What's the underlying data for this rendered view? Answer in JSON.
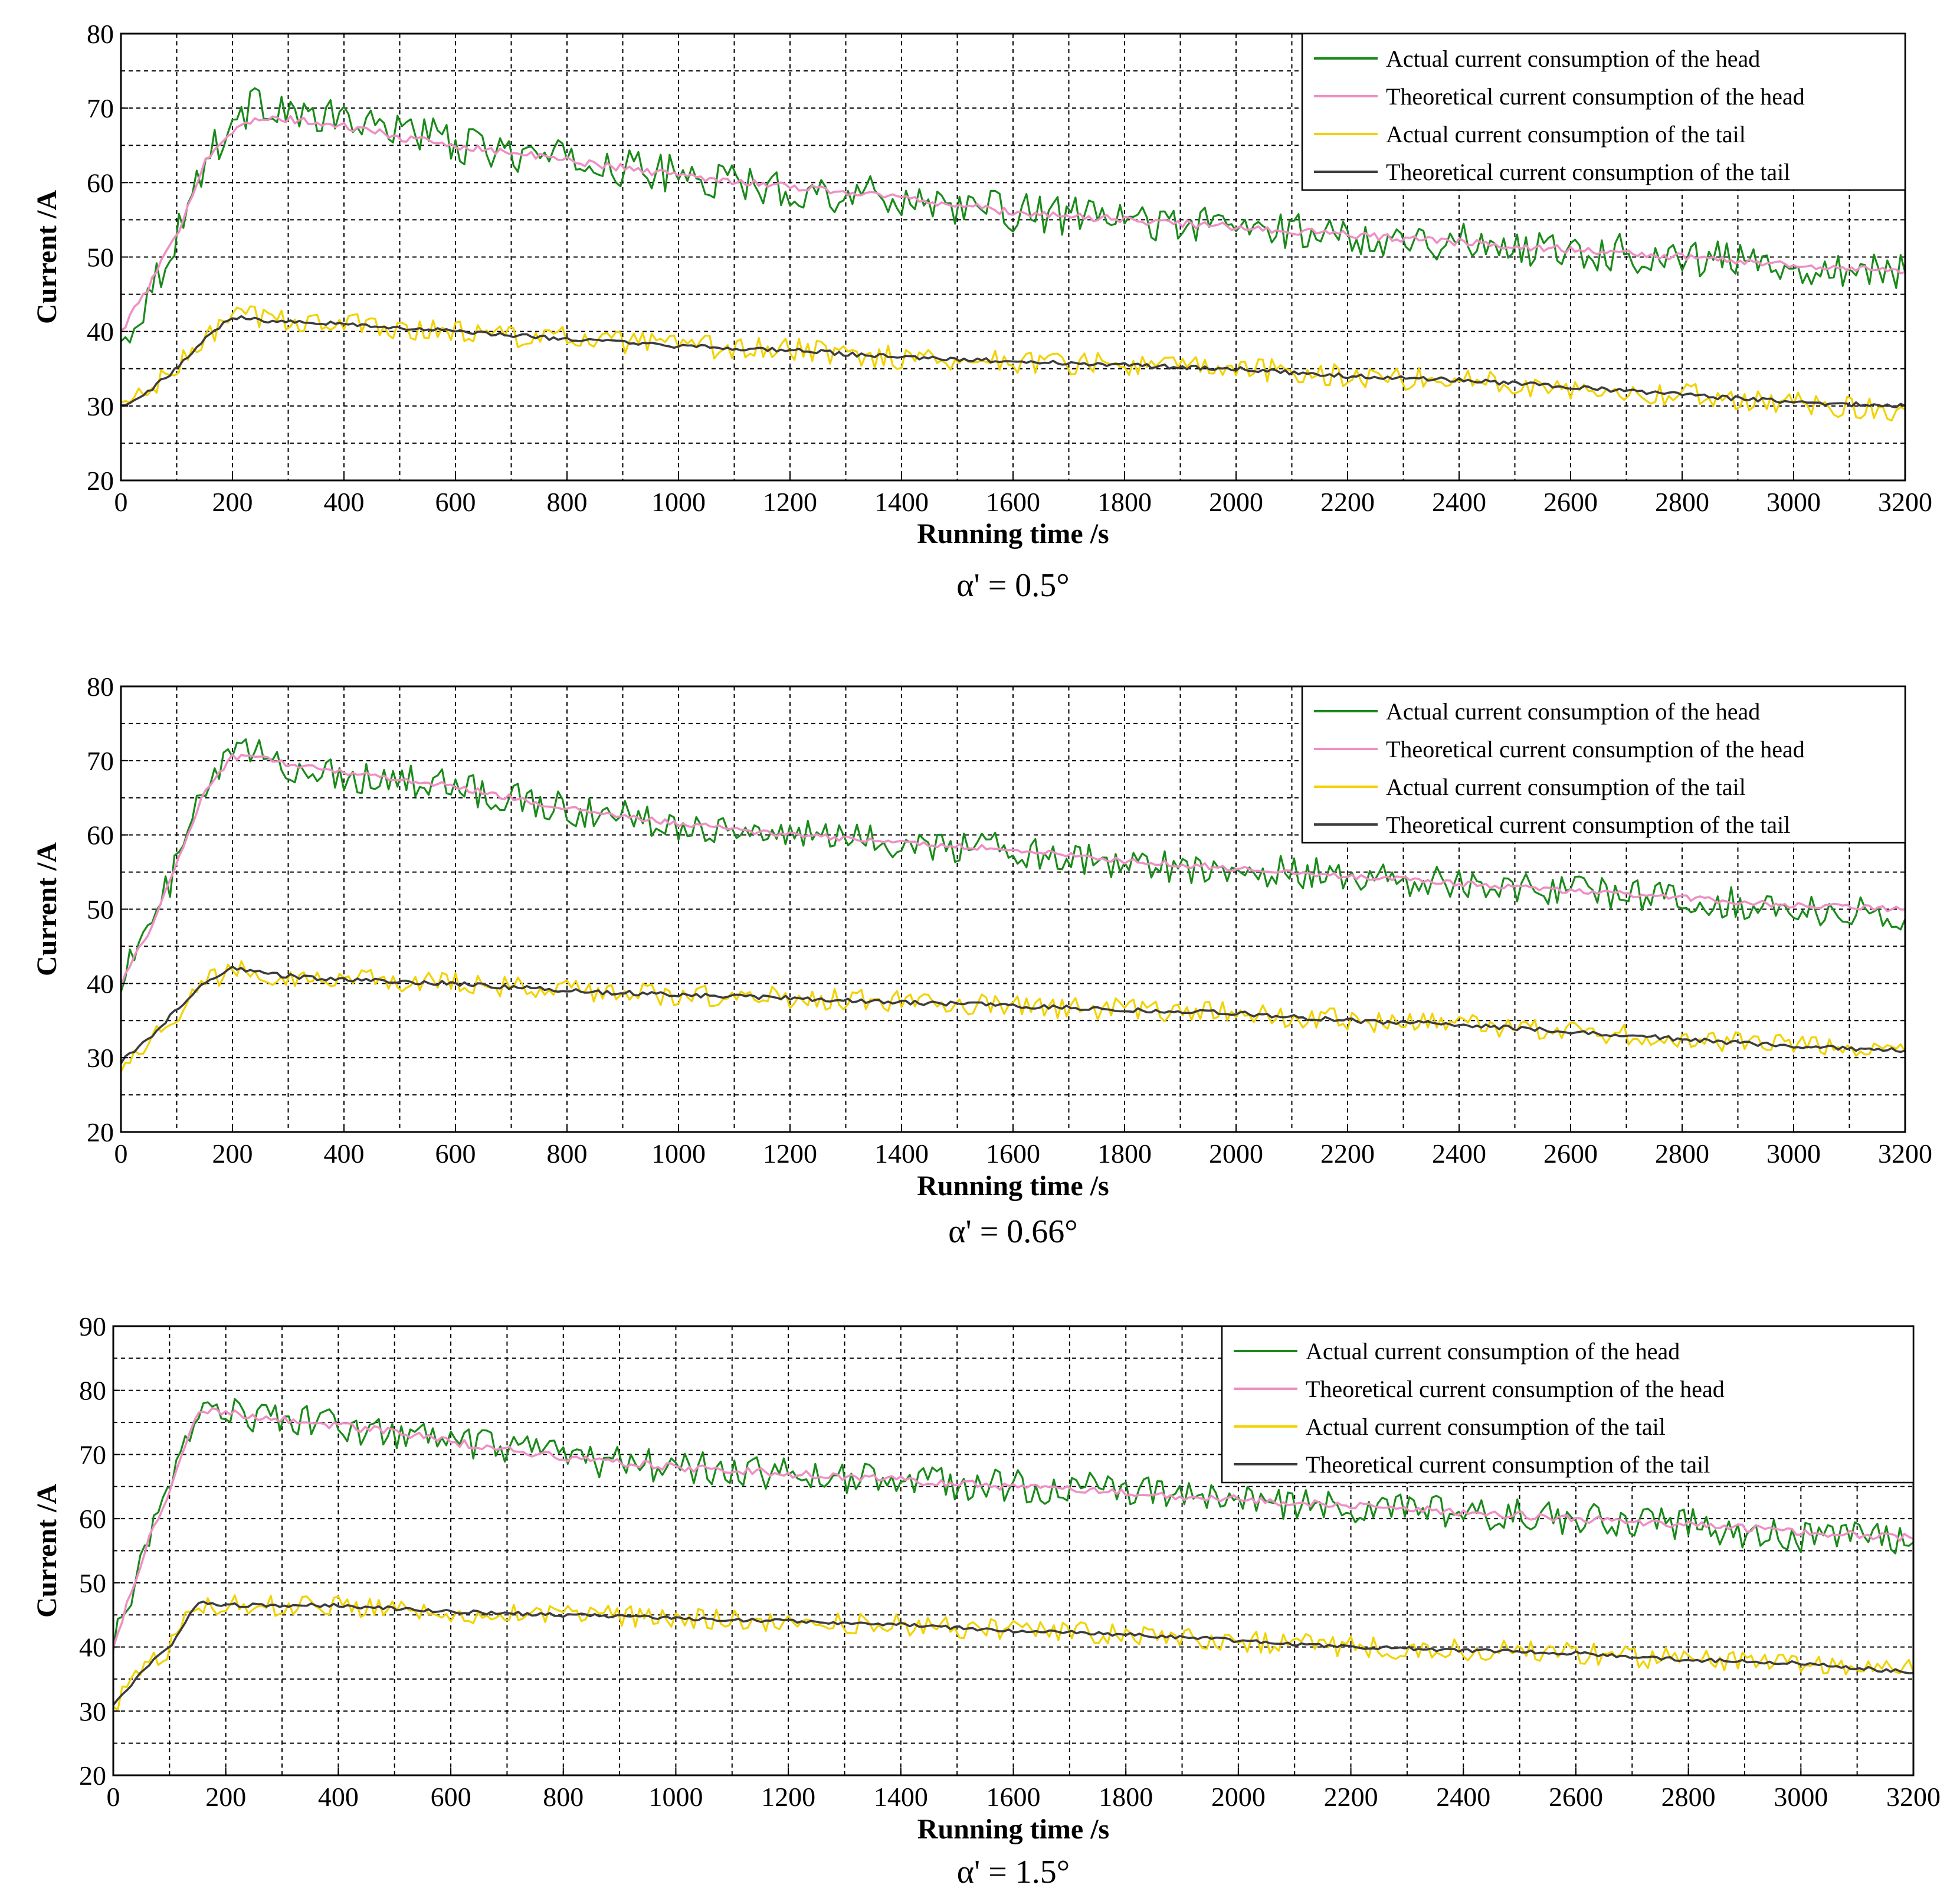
{
  "chart_data": [
    {
      "type": "line",
      "caption": "α' = 0.5°",
      "xlabel": "Running time  /s",
      "ylabel": "Current  /A",
      "xlim": [
        0,
        3200
      ],
      "ylim": [
        20,
        80
      ],
      "xticks": [
        0,
        200,
        400,
        600,
        800,
        1000,
        1200,
        1400,
        1600,
        1800,
        2000,
        2200,
        2400,
        2600,
        2800,
        3000,
        3200
      ],
      "yticks": [
        20,
        30,
        40,
        50,
        60,
        70,
        80
      ],
      "grid": true,
      "legend_position": "top-right",
      "legend": [
        {
          "name": "Actual current consumption of the head",
          "color": "#1a8a1a"
        },
        {
          "name": "Theoretical current consumption of the head",
          "color": "#ee8fc4"
        },
        {
          "name": "Actual current consumption of the tail",
          "color": "#f2d200"
        },
        {
          "name": "Theoretical current consumption of the tail",
          "color": "#3c3c3c"
        }
      ],
      "series": [
        {
          "name": "Actual current consumption of the head",
          "color": "#1a8a1a",
          "x": [
            0,
            50,
            100,
            150,
            200,
            250,
            300,
            350,
            400,
            450,
            500,
            600,
            700,
            800,
            900,
            1000,
            1200,
            1400,
            1600,
            1800,
            2000,
            2200,
            2400,
            2600,
            2800,
            3000,
            3200
          ],
          "y": [
            38,
            45,
            53,
            63,
            68,
            71,
            70,
            68,
            69,
            67,
            68,
            65,
            64,
            63,
            62,
            61,
            59,
            58,
            56,
            55,
            54,
            53,
            52,
            51,
            50,
            49,
            48
          ],
          "noise": 2.6
        },
        {
          "name": "Theoretical current consumption of the head",
          "color": "#ee8fc4",
          "x": [
            0,
            50,
            100,
            150,
            200,
            250,
            300,
            350,
            400,
            450,
            500,
            600,
            700,
            800,
            900,
            1000,
            1200,
            1400,
            1600,
            1800,
            2000,
            2200,
            2400,
            2600,
            2800,
            3000,
            3200
          ],
          "y": [
            40,
            46,
            53,
            63,
            67,
            68.5,
            68.5,
            68,
            67.5,
            67,
            66,
            65,
            64,
            63,
            62,
            61,
            59.5,
            58,
            56,
            55,
            54,
            53,
            52,
            51,
            50,
            49,
            48
          ],
          "noise": 0.5
        },
        {
          "name": "Actual current consumption of the tail",
          "color": "#f2d200",
          "x": [
            0,
            50,
            100,
            150,
            200,
            250,
            300,
            400,
            600,
            800,
            1000,
            1200,
            1400,
            1600,
            1800,
            2000,
            2200,
            2400,
            2600,
            2800,
            3000,
            3200
          ],
          "y": [
            30,
            32,
            35,
            39,
            42,
            42,
            41.5,
            41,
            40,
            39,
            38,
            37.5,
            36.5,
            36,
            35.5,
            35,
            34,
            33.5,
            32.5,
            31.5,
            30.5,
            29.5
          ],
          "noise": 1.6
        },
        {
          "name": "Theoretical current consumption of the tail",
          "color": "#3c3c3c",
          "x": [
            0,
            50,
            100,
            150,
            200,
            250,
            300,
            400,
            600,
            800,
            1000,
            1200,
            1400,
            1600,
            1800,
            2000,
            2200,
            2400,
            2600,
            2800,
            3000,
            3200
          ],
          "y": [
            30,
            32,
            35,
            39,
            42,
            41.5,
            41.5,
            41,
            40,
            39,
            38,
            37.5,
            36.5,
            36,
            35.5,
            35,
            34,
            33.5,
            32.5,
            31.5,
            30.5,
            30
          ],
          "noise": 0.3
        }
      ]
    },
    {
      "type": "line",
      "caption": "α' = 0.66°",
      "xlabel": "Running time  /s",
      "ylabel": "Current  /A",
      "xlim": [
        0,
        3200
      ],
      "ylim": [
        20,
        80
      ],
      "xticks": [
        0,
        200,
        400,
        600,
        800,
        1000,
        1200,
        1400,
        1600,
        1800,
        2000,
        2200,
        2400,
        2600,
        2800,
        3000,
        3200
      ],
      "yticks": [
        20,
        30,
        40,
        50,
        60,
        70,
        80
      ],
      "grid": true,
      "legend_position": "top-right",
      "legend": [
        {
          "name": "Actual current consumption of the head",
          "color": "#1a8a1a"
        },
        {
          "name": "Theoretical current consumption of the head",
          "color": "#ee8fc4"
        },
        {
          "name": "Actual current consumption of the tail",
          "color": "#f2d200"
        },
        {
          "name": "Theoretical current consumption of the tail",
          "color": "#3c3c3c"
        }
      ],
      "series": [
        {
          "name": "Actual current consumption of the head",
          "color": "#1a8a1a",
          "x": [
            0,
            50,
            100,
            150,
            200,
            250,
            300,
            400,
            500,
            600,
            700,
            800,
            1000,
            1200,
            1400,
            1600,
            1800,
            2000,
            2200,
            2400,
            2600,
            2800,
            3000,
            3200
          ],
          "y": [
            41,
            47,
            56,
            66,
            71,
            71,
            69,
            68,
            67.5,
            66.5,
            65,
            63.5,
            61.5,
            60,
            59,
            58,
            56,
            55.5,
            54.5,
            53.5,
            52.5,
            51.5,
            50,
            49
          ],
          "noise": 2.2
        },
        {
          "name": "Theoretical current consumption of the head",
          "color": "#ee8fc4",
          "x": [
            0,
            50,
            100,
            150,
            200,
            250,
            300,
            400,
            500,
            600,
            700,
            800,
            1000,
            1200,
            1400,
            1600,
            1800,
            2000,
            2200,
            2400,
            2600,
            2800,
            3000,
            3200
          ],
          "y": [
            40,
            47,
            56,
            66,
            70.5,
            70.5,
            69.5,
            68.5,
            67.5,
            66.5,
            65,
            63.5,
            61.5,
            60,
            59,
            58,
            56.5,
            55.5,
            54.5,
            53.5,
            52.5,
            51.5,
            50.5,
            50
          ],
          "noise": 0.4
        },
        {
          "name": "Actual current consumption of the tail",
          "color": "#f2d200",
          "x": [
            0,
            50,
            100,
            150,
            200,
            250,
            300,
            400,
            600,
            800,
            1000,
            1200,
            1400,
            1600,
            1800,
            2000,
            2200,
            2400,
            2600,
            2800,
            3000,
            3200
          ],
          "y": [
            29.5,
            32,
            36,
            40,
            42,
            41.5,
            41,
            40.5,
            40,
            39,
            38.5,
            38,
            37.5,
            37,
            36.5,
            36,
            35,
            34.5,
            33.5,
            32.5,
            31.5,
            31
          ],
          "noise": 1.5
        },
        {
          "name": "Theoretical current consumption of the tail",
          "color": "#3c3c3c",
          "x": [
            0,
            50,
            100,
            150,
            200,
            250,
            300,
            400,
            600,
            800,
            1000,
            1200,
            1400,
            1600,
            1800,
            2000,
            2200,
            2400,
            2600,
            2800,
            3000,
            3200
          ],
          "y": [
            29.5,
            32.5,
            36.5,
            40,
            42,
            41.5,
            41,
            40.5,
            40,
            39,
            38.5,
            38,
            37.5,
            37,
            36.5,
            36,
            35,
            34.5,
            33.5,
            32.5,
            31.5,
            31
          ],
          "noise": 0.3
        }
      ]
    },
    {
      "type": "line",
      "caption": "α' = 1.5°",
      "xlabel": "Running time  /s",
      "ylabel": "Current  /A",
      "xlim": [
        0,
        3200
      ],
      "ylim": [
        20,
        90
      ],
      "xticks": [
        0,
        200,
        400,
        600,
        800,
        1000,
        1200,
        1400,
        1600,
        1800,
        2000,
        2200,
        2400,
        2600,
        2800,
        3000,
        3200
      ],
      "yticks": [
        20,
        30,
        40,
        50,
        60,
        70,
        80,
        90
      ],
      "grid": true,
      "legend_position": "top-right",
      "legend": [
        {
          "name": "Actual current consumption of the head",
          "color": "#1a8a1a"
        },
        {
          "name": "Theoretical current consumption of the head",
          "color": "#ee8fc4"
        },
        {
          "name": "Actual current consumption of the tail",
          "color": "#f2d200"
        },
        {
          "name": "Theoretical current consumption of the tail",
          "color": "#3c3c3c"
        }
      ],
      "series": [
        {
          "name": "Actual current consumption of the head",
          "color": "#1a8a1a",
          "x": [
            0,
            30,
            60,
            100,
            130,
            150,
            200,
            250,
            300,
            400,
            500,
            600,
            800,
            1000,
            1200,
            1400,
            1600,
            1800,
            2000,
            2200,
            2400,
            2600,
            2800,
            3000,
            3200
          ],
          "y": [
            40,
            48,
            56,
            64,
            72,
            78,
            77,
            76,
            75.5,
            74.5,
            73,
            72,
            69.5,
            68,
            67,
            66,
            65,
            64.5,
            63,
            61.5,
            61,
            60,
            59,
            57,
            57
          ],
          "noise": 2.6
        },
        {
          "name": "Theoretical current consumption of the head",
          "color": "#ee8fc4",
          "x": [
            0,
            30,
            60,
            100,
            130,
            150,
            200,
            250,
            300,
            400,
            500,
            600,
            800,
            1000,
            1200,
            1400,
            1600,
            1800,
            2000,
            2200,
            2400,
            2600,
            2800,
            3000,
            3200
          ],
          "y": [
            40,
            48,
            56,
            64,
            72,
            77,
            76.5,
            76,
            75.5,
            74.5,
            73.5,
            72,
            69.5,
            68,
            67,
            66,
            65,
            64,
            63,
            62,
            61,
            60,
            59,
            58,
            57
          ],
          "noise": 0.6
        },
        {
          "name": "Actual current consumption of the tail",
          "color": "#f2d200",
          "x": [
            0,
            30,
            60,
            100,
            130,
            150,
            200,
            300,
            400,
            600,
            800,
            1000,
            1200,
            1400,
            1600,
            1800,
            2000,
            2200,
            2400,
            2600,
            2800,
            3000,
            3200
          ],
          "y": [
            31,
            34,
            37,
            40,
            44,
            47,
            46.5,
            46.5,
            46.5,
            45.5,
            45,
            44.5,
            44,
            43.5,
            42.5,
            42,
            41,
            40,
            39.5,
            39,
            38,
            37.5,
            36.5
          ],
          "noise": 1.7
        },
        {
          "name": "Theoretical current consumption of the tail",
          "color": "#3c3c3c",
          "x": [
            0,
            30,
            60,
            100,
            130,
            150,
            200,
            300,
            400,
            600,
            800,
            1000,
            1200,
            1400,
            1600,
            1800,
            2000,
            2200,
            2400,
            2600,
            2800,
            3000,
            3200
          ],
          "y": [
            31,
            34,
            37,
            40,
            44,
            47,
            46.5,
            46.5,
            46.5,
            45.5,
            45,
            44.5,
            44,
            43.5,
            42.5,
            42,
            41,
            40,
            39.5,
            39,
            38,
            37.5,
            36
          ],
          "noise": 0.3
        }
      ]
    }
  ]
}
